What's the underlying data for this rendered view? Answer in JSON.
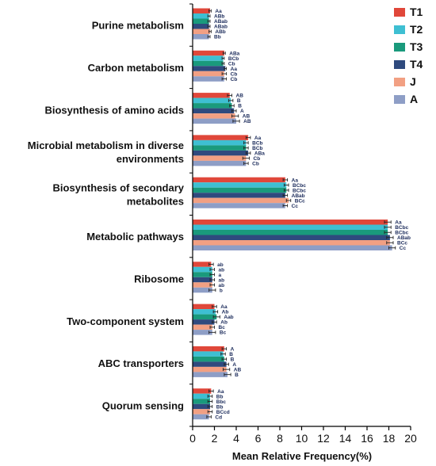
{
  "chart_data": {
    "type": "bar",
    "orientation": "horizontal",
    "xlabel": "Mean Relative Frequency(%)",
    "xlim": [
      0,
      20
    ],
    "xticks": [
      0,
      2,
      4,
      6,
      8,
      10,
      12,
      14,
      16,
      18,
      20
    ],
    "legend_position": "top-right",
    "categories": [
      "Purine metabolism",
      "Carbon metabolism",
      "Biosynthesis of amino acids",
      "Microbial metabolism in diverse environments",
      "Biosynthesis of secondary metabolites",
      "Metabolic pathways",
      "Ribosome",
      "Two-component system",
      "ABC transporters",
      "Quorum sensing"
    ],
    "category_lines": [
      [
        "Purine metabolism"
      ],
      [
        "Carbon metabolism"
      ],
      [
        "Biosynthesis of amino acids"
      ],
      [
        "Microbial metabolism in diverse",
        "environments"
      ],
      [
        "Biosynthesis of secondary",
        "metabolites"
      ],
      [
        "Metabolic pathways"
      ],
      [
        "Ribosome"
      ],
      [
        "Two-component system"
      ],
      [
        "ABC transporters"
      ],
      [
        "Quorum sensing"
      ]
    ],
    "series": [
      {
        "name": "T1",
        "color": "#e0473a",
        "values": [
          1.6,
          2.9,
          3.4,
          5.1,
          8.5,
          17.9,
          1.7,
          2.0,
          2.9,
          1.7
        ],
        "errors": [
          0.1,
          0.1,
          0.2,
          0.2,
          0.2,
          0.3,
          0.2,
          0.2,
          0.2,
          0.2
        ],
        "labels": [
          "Aa",
          "ABa",
          "AB",
          "Aa",
          "Aa",
          "Aa",
          "ab",
          "Aa",
          "A",
          "Aa"
        ]
      },
      {
        "name": "T2",
        "color": "#3ebfd2",
        "values": [
          1.5,
          2.8,
          3.5,
          4.9,
          8.6,
          17.9,
          1.8,
          2.1,
          2.8,
          1.6
        ],
        "errors": [
          0.1,
          0.1,
          0.2,
          0.2,
          0.2,
          0.3,
          0.2,
          0.2,
          0.2,
          0.2
        ],
        "labels": [
          "ABb",
          "BCb",
          "B",
          "BCb",
          "BCbc",
          "BCbc",
          "ab",
          "Ab",
          "B",
          "Bb"
        ]
      },
      {
        "name": "T3",
        "color": "#1a9a7c",
        "values": [
          1.5,
          2.8,
          3.6,
          4.9,
          8.6,
          17.9,
          1.8,
          2.2,
          2.9,
          1.6
        ],
        "errors": [
          0.1,
          0.1,
          0.2,
          0.2,
          0.2,
          0.3,
          0.2,
          0.3,
          0.2,
          0.2
        ],
        "labels": [
          "ABab",
          "Cb",
          "B",
          "BCb",
          "BCbc",
          "BCbc",
          "a",
          "Aab",
          "B",
          "Bbc"
        ]
      },
      {
        "name": "T4",
        "color": "#2f4a7e",
        "values": [
          1.5,
          3.0,
          3.8,
          5.1,
          8.5,
          18.1,
          1.8,
          2.0,
          3.1,
          1.6
        ],
        "errors": [
          0.1,
          0.1,
          0.2,
          0.2,
          0.2,
          0.3,
          0.2,
          0.2,
          0.2,
          0.2
        ],
        "labels": [
          "ABab",
          "Aa",
          "A",
          "ABa",
          "ABab",
          "ABab",
          "ab",
          "Ab",
          "A",
          "Bb"
        ]
      },
      {
        "name": "J",
        "color": "#f2a083",
        "values": [
          1.6,
          2.9,
          3.9,
          4.9,
          8.8,
          18.1,
          1.8,
          1.8,
          3.1,
          1.6
        ],
        "errors": [
          0.1,
          0.2,
          0.3,
          0.3,
          0.2,
          0.3,
          0.2,
          0.2,
          0.3,
          0.2
        ],
        "labels": [
          "ABb",
          "Cb",
          "AB",
          "Cb",
          "BCc",
          "BCc",
          "ab",
          "Bc",
          "AB",
          "BCcd"
        ]
      },
      {
        "name": "A",
        "color": "#8e9ec6",
        "values": [
          1.5,
          2.9,
          4.0,
          4.9,
          8.5,
          18.3,
          1.8,
          1.8,
          3.2,
          1.5
        ],
        "errors": [
          0.1,
          0.2,
          0.3,
          0.2,
          0.2,
          0.3,
          0.3,
          0.3,
          0.3,
          0.2
        ],
        "labels": [
          "Bb",
          "Cb",
          "AB",
          "Cb",
          "Cc",
          "Cc",
          "b",
          "Bc",
          "B",
          "Cd"
        ]
      }
    ]
  }
}
